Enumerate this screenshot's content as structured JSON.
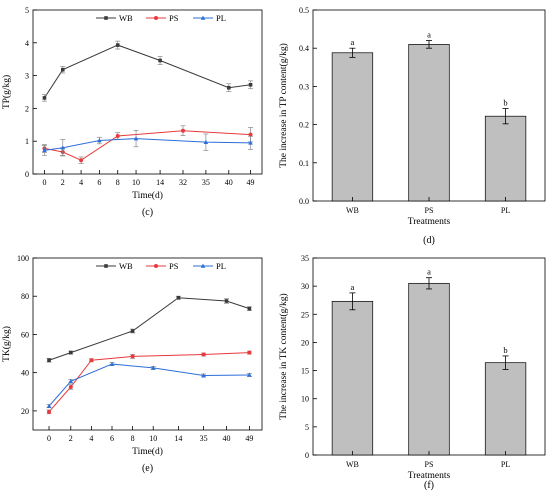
{
  "chart_data": [
    {
      "type": "line",
      "panel_label": "(c)",
      "xlabel": "Time(d)",
      "ylabel": "TP(g/kg)",
      "x_ticks": [
        "0",
        "2",
        "4",
        "6",
        "8",
        "10",
        "14",
        "32",
        "35",
        "40",
        "49"
      ],
      "ylim": [
        0,
        5
      ],
      "y_ticks": [
        "0",
        "1",
        "2",
        "3",
        "4",
        "5"
      ],
      "legend_position": "top",
      "series": [
        {
          "name": "WB",
          "color": "#3a3a3a",
          "marker": "square",
          "x": [
            "0",
            "2",
            "8",
            "14",
            "40",
            "49"
          ],
          "y": [
            2.32,
            3.18,
            3.93,
            3.46,
            2.63,
            2.72
          ],
          "err": [
            0.1,
            0.1,
            0.12,
            0.12,
            0.12,
            0.12
          ]
        },
        {
          "name": "PS",
          "color": "#e8393d",
          "marker": "circle",
          "x": [
            "0",
            "2",
            "4",
            "8",
            "32",
            "49"
          ],
          "y": [
            0.78,
            0.67,
            0.42,
            1.16,
            1.32,
            1.2
          ],
          "err": [
            0.12,
            0.1,
            0.1,
            0.1,
            0.15,
            0.22
          ]
        },
        {
          "name": "PL",
          "color": "#2d6fd8",
          "marker": "triangle",
          "x": [
            "0",
            "2",
            "6",
            "10",
            "35",
            "49"
          ],
          "y": [
            0.72,
            0.8,
            1.02,
            1.08,
            0.97,
            0.95
          ],
          "err": [
            0.15,
            0.25,
            0.1,
            0.25,
            0.25,
            0.2
          ]
        }
      ]
    },
    {
      "type": "bar",
      "panel_label": "(d)",
      "xlabel": "Treatments",
      "ylabel": "The increase in TP content(g/kg)",
      "categories": [
        "WB",
        "PS",
        "PL"
      ],
      "values": [
        0.388,
        0.41,
        0.222
      ],
      "errors": [
        0.012,
        0.01,
        0.02
      ],
      "significance": [
        "a",
        "a",
        "b"
      ],
      "ylim": [
        0,
        0.5
      ],
      "y_ticks": [
        "0.0",
        "0.1",
        "0.2",
        "0.3",
        "0.4",
        "0.5"
      ],
      "bar_color": "#bfbfbf"
    },
    {
      "type": "line",
      "panel_label": "(e)",
      "xlabel": "Time(d)",
      "ylabel": "TK(g/kg)",
      "x_ticks": [
        "0",
        "2",
        "4",
        "6",
        "8",
        "10",
        "14",
        "35",
        "40",
        "49"
      ],
      "ylim": [
        10,
        100
      ],
      "y_ticks": [
        "20",
        "40",
        "60",
        "80",
        "100"
      ],
      "legend_position": "top",
      "series": [
        {
          "name": "WB",
          "color": "#3a3a3a",
          "marker": "square",
          "x": [
            "0",
            "2",
            "8",
            "14",
            "40",
            "49"
          ],
          "y": [
            46.5,
            50.5,
            61.8,
            79.2,
            77.5,
            73.5
          ],
          "err": [
            1.0,
            0.8,
            1.0,
            0.8,
            1.2,
            1.0
          ]
        },
        {
          "name": "PS",
          "color": "#e8393d",
          "marker": "circle",
          "x": [
            "0",
            "2",
            "4",
            "8",
            "35",
            "49"
          ],
          "y": [
            19.5,
            32.5,
            46.5,
            48.5,
            49.5,
            50.5
          ],
          "err": [
            1.0,
            1.2,
            0.8,
            1.0,
            0.8,
            0.8
          ]
        },
        {
          "name": "PL",
          "color": "#2d6fd8",
          "marker": "triangle",
          "x": [
            "0",
            "2",
            "6",
            "10",
            "35",
            "49"
          ],
          "y": [
            22.5,
            35.5,
            44.5,
            42.5,
            38.5,
            38.8
          ],
          "err": [
            0.8,
            1.0,
            0.8,
            0.8,
            0.8,
            0.8
          ]
        }
      ]
    },
    {
      "type": "bar",
      "panel_label": "(f)",
      "xlabel": "Treatments",
      "ylabel": "The increase in TK content(g/kg)",
      "categories": [
        "WB",
        "PS",
        "PL"
      ],
      "values": [
        27.3,
        30.5,
        16.4
      ],
      "errors": [
        1.5,
        1.0,
        1.2
      ],
      "significance": [
        "a",
        "a",
        "b"
      ],
      "ylim": [
        0,
        35
      ],
      "y_ticks": [
        "0",
        "5",
        "10",
        "15",
        "20",
        "25",
        "30",
        "35"
      ],
      "bar_color": "#bfbfbf"
    }
  ]
}
